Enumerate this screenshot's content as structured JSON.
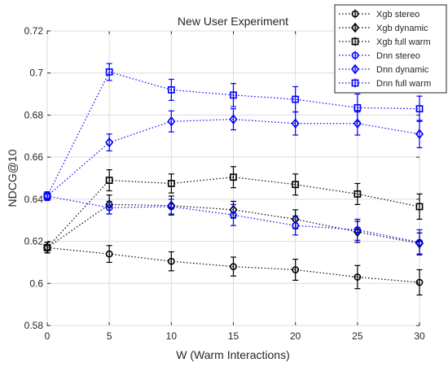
{
  "chart_data": {
    "type": "line",
    "title": "New User Experiment",
    "xlabel": "W (Warm Interactions)",
    "ylabel": "NDCG@10",
    "x": [
      0,
      5,
      10,
      15,
      20,
      25,
      30
    ],
    "xlim": [
      0,
      30
    ],
    "ylim": [
      0.58,
      0.72
    ],
    "xticks": [
      "0",
      "5",
      "10",
      "15",
      "20",
      "25",
      "30"
    ],
    "yticks": [
      "0.58",
      "0.6",
      "0.62",
      "0.64",
      "0.66",
      "0.68",
      "0.7",
      "0.72"
    ],
    "grid": true,
    "legend_position": "top-right",
    "series": [
      {
        "name": "Xgb stereo",
        "color": "#000000",
        "marker": "circle",
        "values": [
          0.617,
          0.614,
          0.6105,
          0.608,
          0.6065,
          0.603,
          0.6005
        ],
        "errors": [
          0.0025,
          0.004,
          0.0045,
          0.0045,
          0.005,
          0.0055,
          0.006
        ]
      },
      {
        "name": "Xgb dynamic",
        "color": "#000000",
        "marker": "diamond",
        "values": [
          0.617,
          0.6375,
          0.637,
          0.635,
          0.6305,
          0.6245,
          0.619
        ],
        "errors": [
          0.0025,
          0.0045,
          0.0045,
          0.004,
          0.0045,
          0.005,
          0.005
        ]
      },
      {
        "name": "Xgb full warm",
        "color": "#000000",
        "marker": "square",
        "values": [
          0.617,
          0.649,
          0.6475,
          0.6505,
          0.647,
          0.6425,
          0.6365
        ],
        "errors": [
          0.0025,
          0.005,
          0.0045,
          0.005,
          0.005,
          0.005,
          0.006
        ]
      },
      {
        "name": "Dnn stereo",
        "color": "#0000ff",
        "marker": "circle",
        "values": [
          0.6415,
          0.636,
          0.6365,
          0.6325,
          0.6275,
          0.6255,
          0.6195
        ],
        "errors": [
          0.002,
          0.003,
          0.0035,
          0.005,
          0.0045,
          0.005,
          0.006
        ]
      },
      {
        "name": "Dnn dynamic",
        "color": "#0000ff",
        "marker": "diamond",
        "values": [
          0.6415,
          0.667,
          0.677,
          0.678,
          0.676,
          0.676,
          0.671
        ],
        "errors": [
          0.002,
          0.004,
          0.005,
          0.005,
          0.0055,
          0.0055,
          0.0065
        ]
      },
      {
        "name": "Dnn full warm",
        "color": "#0000ff",
        "marker": "square",
        "values": [
          0.6415,
          0.7005,
          0.692,
          0.6895,
          0.6875,
          0.6835,
          0.683
        ],
        "errors": [
          0.002,
          0.004,
          0.005,
          0.0055,
          0.006,
          0.0065,
          0.006
        ]
      }
    ]
  }
}
